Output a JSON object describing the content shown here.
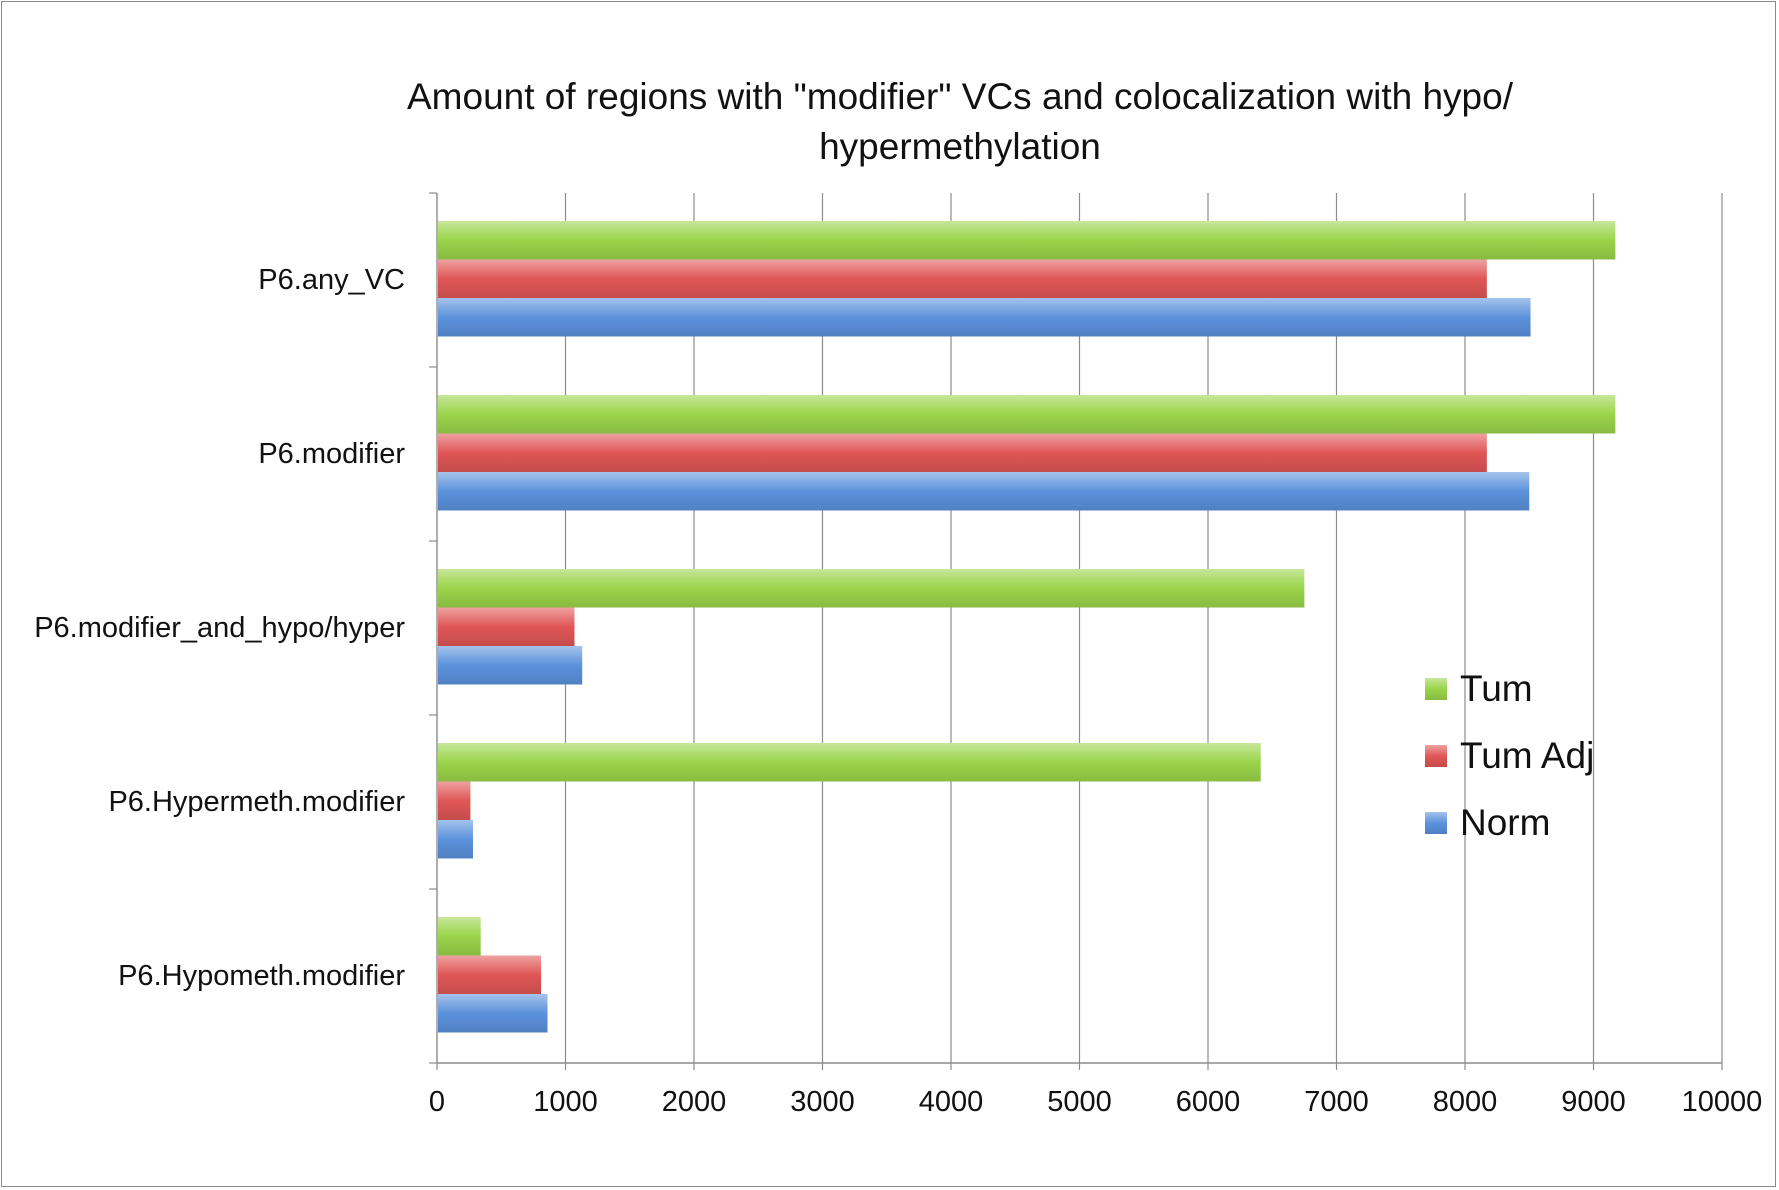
{
  "chart_data": {
    "type": "bar",
    "orientation": "horizontal",
    "title": "Amount of regions with \"modifier\" VCs and colocalization with hypo/\nhypermethylation",
    "categories": [
      "P6.any_VC",
      "P6.modifier",
      "P6.modifier_and_hypo/hyper",
      "P6.Hypermeth.modifier",
      "P6.Hypometh.modifier"
    ],
    "series": [
      {
        "name": "Tum",
        "color": "#9ad44a",
        "values": [
          9170,
          9170,
          6750,
          6410,
          340
        ]
      },
      {
        "name": "Tum Adj",
        "color": "#e05656",
        "values": [
          8170,
          8170,
          1070,
          260,
          810
        ]
      },
      {
        "name": "Norm",
        "color": "#5b92dc",
        "values": [
          8510,
          8500,
          1130,
          280,
          860
        ]
      }
    ],
    "xlim": [
      0,
      10000
    ],
    "xticks": [
      "0",
      "1000",
      "2000",
      "3000",
      "4000",
      "5000",
      "6000",
      "7000",
      "8000",
      "9000",
      "10000"
    ],
    "grid": "vertical",
    "legend_position": "right"
  }
}
